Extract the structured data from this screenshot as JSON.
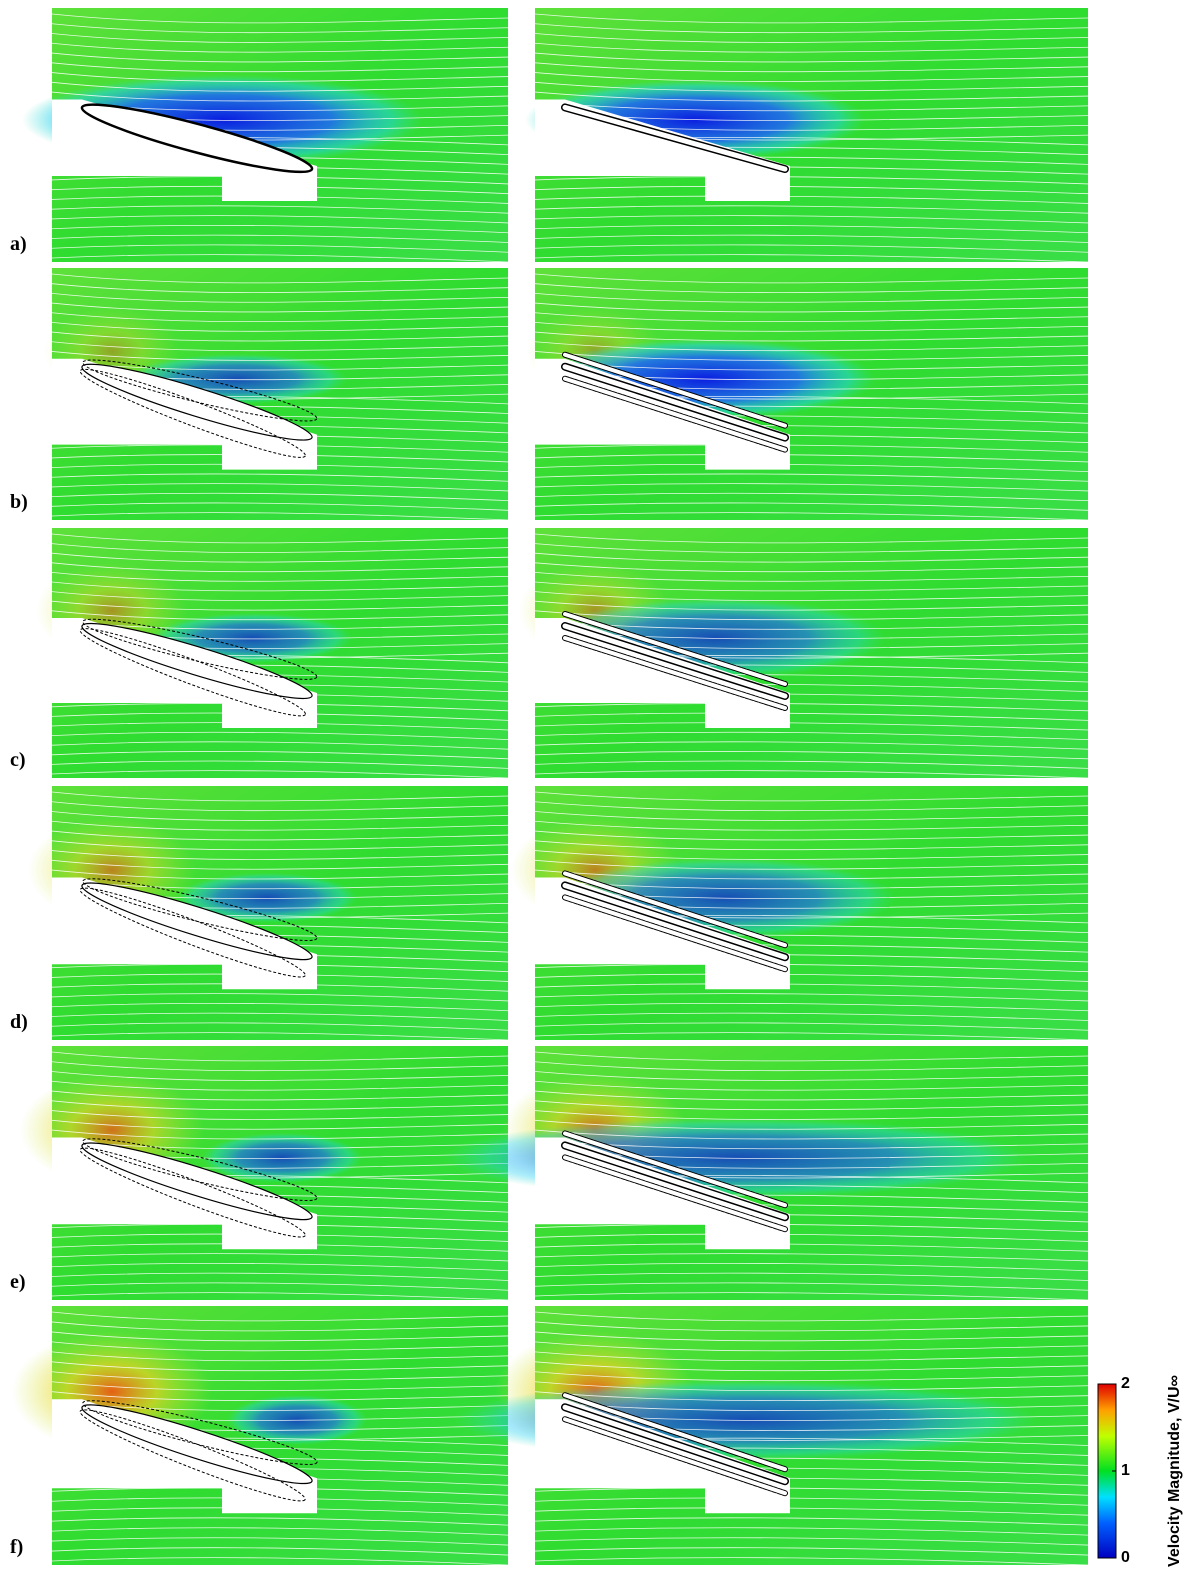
{
  "panel_labels": [
    "a)",
    "b)",
    "c)",
    "d)",
    "e)",
    "f)"
  ],
  "colorbar": {
    "label": "Velocity Magnitude, V/U∞",
    "lim": [
      0,
      2
    ],
    "ticks": [
      0,
      1,
      2
    ]
  }
}
